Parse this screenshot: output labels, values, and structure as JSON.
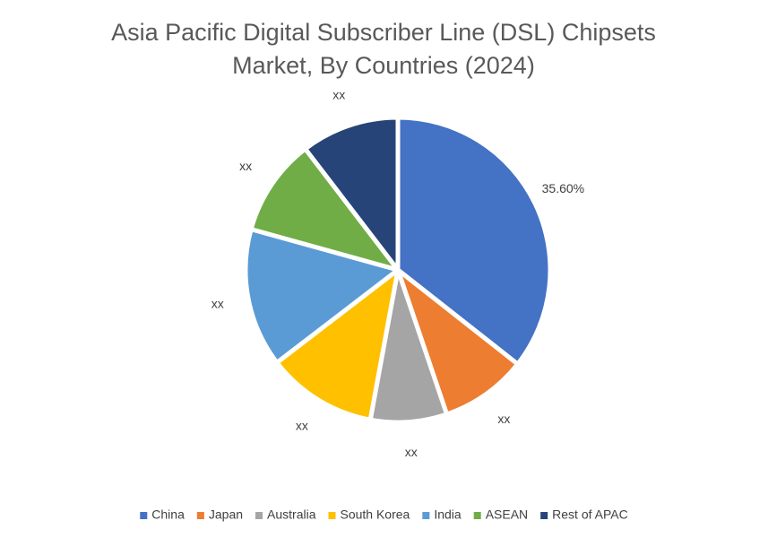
{
  "chart_data": {
    "type": "pie",
    "title": "Asia Pacific Digital Subscriber Line (DSL) Chipsets Market, By Countries (2024)",
    "categories": [
      "China",
      "Japan",
      "Australia",
      "South Korea",
      "India",
      "ASEAN",
      "Rest of APAC"
    ],
    "values": [
      35.6,
      9.2,
      8.1,
      11.7,
      14.7,
      10.3,
      10.4
    ],
    "value_labels": [
      "35.60%",
      "xx",
      "xx",
      "xx",
      "xx",
      "xx",
      "xx"
    ],
    "colors": [
      "#4472c4",
      "#ed7d31",
      "#a5a5a5",
      "#ffc000",
      "#5b9bd5",
      "#70ad47",
      "#264478"
    ],
    "legend": "bottom"
  }
}
